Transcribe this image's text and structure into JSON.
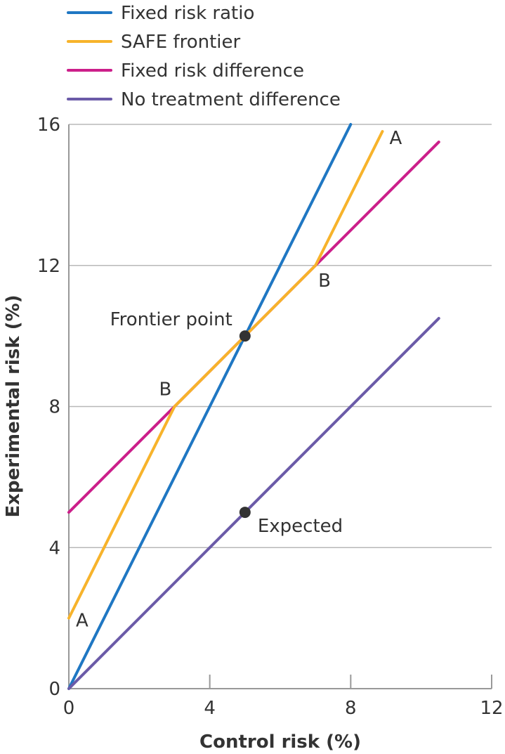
{
  "chart_data": {
    "type": "line",
    "title": "",
    "xlabel": "Control risk (%)",
    "ylabel": "Experimental risk (%)",
    "xlim": [
      0,
      12
    ],
    "ylim": [
      0,
      16
    ],
    "xticks": [
      0,
      4,
      8,
      12
    ],
    "yticks": [
      0,
      4,
      8,
      12,
      16
    ],
    "grid": "horizontal",
    "legend_position": "top-left",
    "series": [
      {
        "name": "Fixed risk ratio",
        "color": "#1f77c3",
        "x": [
          0,
          8
        ],
        "y": [
          0,
          16
        ]
      },
      {
        "name": "SAFE frontier",
        "color": "#f7b32b",
        "x": [
          0,
          3,
          5,
          7,
          8.9
        ],
        "y": [
          2,
          8,
          10,
          12,
          15.8
        ]
      },
      {
        "name": "Fixed risk difference",
        "color": "#cc1f8a",
        "x": [
          0,
          10.5
        ],
        "y": [
          5,
          15.5
        ]
      },
      {
        "name": "No treatment difference",
        "color": "#6b5ba8",
        "x": [
          0,
          10.5
        ],
        "y": [
          0,
          10.5
        ]
      }
    ],
    "points": [
      {
        "label": "Frontier point",
        "x": 5,
        "y": 10,
        "label_side": "left"
      },
      {
        "label": "Expected",
        "x": 5,
        "y": 5,
        "label_side": "right"
      }
    ],
    "annotations": [
      {
        "text": "A",
        "x": 8.9,
        "y": 15.8
      },
      {
        "text": "B",
        "x": 7,
        "y": 12
      },
      {
        "text": "B",
        "x": 3,
        "y": 8
      },
      {
        "text": "A",
        "x": 0,
        "y": 2
      }
    ]
  }
}
